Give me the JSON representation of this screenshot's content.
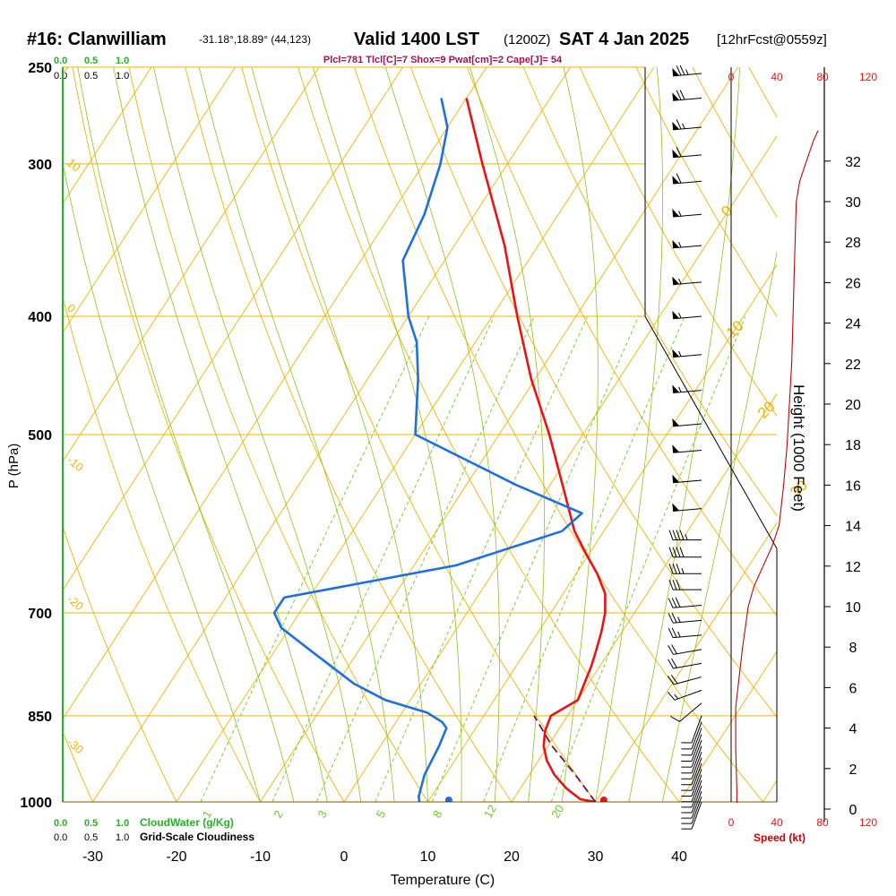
{
  "header": {
    "station": "#16: Clanwilliam",
    "coords": "-31.18°,18.89° (44,123)",
    "valid": "Valid 1400 LST",
    "zulu": "(1200Z)",
    "date": "SAT 4 Jan 2025",
    "forecast": "[12hrFcst@0559z]",
    "indices": "Plcl=781 Tlcl[C]=7 Shox=9 Pwat[cm]=2 Cape[J]= 54"
  },
  "axes": {
    "x_label": "Temperature (C)",
    "y_label": "P (hPa)",
    "height_label": "Height (1000 Feet)",
    "speed_label": "Speed (kt)",
    "cloudwater_label": "CloudWater (g/Kg)",
    "cloudiness_label": "Grid-Scale Cloudiness",
    "cloud_scale_ticks": [
      "0.0",
      "0.5",
      "1.0"
    ]
  },
  "colors": {
    "temperature": "#ee1111",
    "dewpoint": "#1e6fe0",
    "parcel": "#7a0a4a",
    "isotherm": "#f0b400",
    "dry_adiabat": "#f0b400",
    "moist_adiabat": "#8dc41a",
    "mixing_ratio": "#6ccc22",
    "wind_speed": "#cc0000",
    "indices": "#a0105a",
    "cloudwater": "#22b422"
  },
  "chart_data": {
    "type": "skew-t",
    "pressure_ticks": [
      250,
      300,
      400,
      500,
      700,
      850,
      1000
    ],
    "temperature_ticks": [
      -30,
      -20,
      -10,
      0,
      10,
      20,
      30,
      40
    ],
    "temperature_profile": [
      {
        "p": 1000,
        "t": 30
      },
      {
        "p": 995,
        "t": 28
      },
      {
        "p": 975,
        "t": 25.5
      },
      {
        "p": 950,
        "t": 23
      },
      {
        "p": 925,
        "t": 21
      },
      {
        "p": 900,
        "t": 19.5
      },
      {
        "p": 875,
        "t": 18.5
      },
      {
        "p": 850,
        "t": 18
      },
      {
        "p": 840,
        "t": 18.8
      },
      {
        "p": 825,
        "t": 20
      },
      {
        "p": 800,
        "t": 19.5
      },
      {
        "p": 775,
        "t": 19
      },
      {
        "p": 750,
        "t": 18.3
      },
      {
        "p": 725,
        "t": 17.5
      },
      {
        "p": 700,
        "t": 16.5
      },
      {
        "p": 675,
        "t": 15
      },
      {
        "p": 650,
        "t": 12.5
      },
      {
        "p": 625,
        "t": 9.5
      },
      {
        "p": 600,
        "t": 6.5
      },
      {
        "p": 550,
        "t": 1.5
      },
      {
        "p": 500,
        "t": -4
      },
      {
        "p": 450,
        "t": -10.5
      },
      {
        "p": 400,
        "t": -17
      },
      {
        "p": 350,
        "t": -24
      },
      {
        "p": 300,
        "t": -33
      },
      {
        "p": 265,
        "t": -40
      }
    ],
    "dewpoint_profile": [
      {
        "p": 1000,
        "t": 9
      },
      {
        "p": 990,
        "t": 8.5
      },
      {
        "p": 950,
        "t": 7.5
      },
      {
        "p": 900,
        "t": 7
      },
      {
        "p": 870,
        "t": 6.5
      },
      {
        "p": 860,
        "t": 5.5
      },
      {
        "p": 845,
        "t": 3
      },
      {
        "p": 825,
        "t": -3
      },
      {
        "p": 800,
        "t": -8
      },
      {
        "p": 750,
        "t": -16
      },
      {
        "p": 720,
        "t": -21
      },
      {
        "p": 700,
        "t": -23
      },
      {
        "p": 680,
        "t": -23
      },
      {
        "p": 640,
        "t": -5
      },
      {
        "p": 600,
        "t": 5
      },
      {
        "p": 580,
        "t": 6
      },
      {
        "p": 550,
        "t": -4
      },
      {
        "p": 500,
        "t": -20
      },
      {
        "p": 450,
        "t": -24
      },
      {
        "p": 420,
        "t": -27
      },
      {
        "p": 400,
        "t": -30
      },
      {
        "p": 360,
        "t": -35
      },
      {
        "p": 330,
        "t": -36
      },
      {
        "p": 300,
        "t": -38
      },
      {
        "p": 280,
        "t": -40
      },
      {
        "p": 265,
        "t": -43
      }
    ],
    "parcel_profile": [
      {
        "p": 1000,
        "t": 30
      },
      {
        "p": 950,
        "t": 25.5
      },
      {
        "p": 900,
        "t": 20.5
      },
      {
        "p": 850,
        "t": 16
      }
    ],
    "surface_temperature": 31,
    "surface_dewpoint": 12.5,
    "isotherm_labels": [
      -10,
      0,
      10,
      20,
      30
    ],
    "dry_adiabat_labels": [
      10,
      0,
      -10,
      -20,
      -30
    ],
    "mixing_ratio_labels": [
      1,
      2,
      3,
      5,
      8,
      12,
      20
    ],
    "height_ticks_kft": [
      0,
      2,
      4,
      6,
      8,
      10,
      12,
      14,
      16,
      18,
      20,
      22,
      24,
      26,
      28,
      30,
      32
    ],
    "speed_ticks_top": [
      0,
      40,
      80,
      120
    ],
    "speed_ticks_bottom": [
      0,
      40,
      80,
      120
    ],
    "wind_speed_profile": [
      {
        "h": 0.3,
        "kt": 5
      },
      {
        "h": 1,
        "kt": 5
      },
      {
        "h": 3,
        "kt": 4
      },
      {
        "h": 5,
        "kt": 4
      },
      {
        "h": 6,
        "kt": 6
      },
      {
        "h": 8,
        "kt": 10
      },
      {
        "h": 10,
        "kt": 15
      },
      {
        "h": 11,
        "kt": 20
      },
      {
        "h": 12,
        "kt": 28
      },
      {
        "h": 13,
        "kt": 36
      },
      {
        "h": 14,
        "kt": 42
      },
      {
        "h": 16,
        "kt": 46
      },
      {
        "h": 18,
        "kt": 49
      },
      {
        "h": 20,
        "kt": 51
      },
      {
        "h": 22,
        "kt": 53
      },
      {
        "h": 24,
        "kt": 54
      },
      {
        "h": 26,
        "kt": 55
      },
      {
        "h": 28,
        "kt": 56
      },
      {
        "h": 30,
        "kt": 57
      },
      {
        "h": 31,
        "kt": 60
      },
      {
        "h": 32,
        "kt": 66
      },
      {
        "h": 33,
        "kt": 72
      },
      {
        "h": 33.5,
        "kt": 76
      }
    ],
    "wind_barbs": [
      {
        "p": 1000,
        "dir": 200,
        "kt": 10
      },
      {
        "p": 990,
        "dir": 200,
        "kt": 10
      },
      {
        "p": 980,
        "dir": 200,
        "kt": 10
      },
      {
        "p": 970,
        "dir": 200,
        "kt": 10
      },
      {
        "p": 960,
        "dir": 200,
        "kt": 10
      },
      {
        "p": 950,
        "dir": 200,
        "kt": 10
      },
      {
        "p": 940,
        "dir": 200,
        "kt": 10
      },
      {
        "p": 930,
        "dir": 200,
        "kt": 10
      },
      {
        "p": 920,
        "dir": 200,
        "kt": 10
      },
      {
        "p": 910,
        "dir": 200,
        "kt": 10
      },
      {
        "p": 900,
        "dir": 200,
        "kt": 10
      },
      {
        "p": 890,
        "dir": 200,
        "kt": 10
      },
      {
        "p": 880,
        "dir": 200,
        "kt": 10
      },
      {
        "p": 870,
        "dir": 200,
        "kt": 10
      },
      {
        "p": 860,
        "dir": 200,
        "kt": 10
      },
      {
        "p": 850,
        "dir": 200,
        "kt": 10
      },
      {
        "p": 830,
        "dir": 230,
        "kt": 10
      },
      {
        "p": 810,
        "dir": 250,
        "kt": 15
      },
      {
        "p": 790,
        "dir": 255,
        "kt": 20
      },
      {
        "p": 770,
        "dir": 260,
        "kt": 20
      },
      {
        "p": 750,
        "dir": 260,
        "kt": 20
      },
      {
        "p": 730,
        "dir": 265,
        "kt": 25
      },
      {
        "p": 710,
        "dir": 265,
        "kt": 25
      },
      {
        "p": 690,
        "dir": 265,
        "kt": 30
      },
      {
        "p": 670,
        "dir": 270,
        "kt": 30
      },
      {
        "p": 650,
        "dir": 270,
        "kt": 35
      },
      {
        "p": 630,
        "dir": 270,
        "kt": 40
      },
      {
        "p": 610,
        "dir": 270,
        "kt": 45
      },
      {
        "p": 575,
        "dir": 265,
        "kt": 50
      },
      {
        "p": 545,
        "dir": 265,
        "kt": 50
      },
      {
        "p": 515,
        "dir": 265,
        "kt": 50
      },
      {
        "p": 490,
        "dir": 265,
        "kt": 50
      },
      {
        "p": 460,
        "dir": 265,
        "kt": 55
      },
      {
        "p": 430,
        "dir": 265,
        "kt": 55
      },
      {
        "p": 400,
        "dir": 265,
        "kt": 55
      },
      {
        "p": 375,
        "dir": 265,
        "kt": 55
      },
      {
        "p": 350,
        "dir": 265,
        "kt": 55
      },
      {
        "p": 330,
        "dir": 265,
        "kt": 55
      },
      {
        "p": 310,
        "dir": 265,
        "kt": 60
      },
      {
        "p": 295,
        "dir": 265,
        "kt": 60
      },
      {
        "p": 280,
        "dir": 265,
        "kt": 65
      },
      {
        "p": 265,
        "dir": 265,
        "kt": 70
      },
      {
        "p": 253,
        "dir": 265,
        "kt": 75
      }
    ]
  }
}
